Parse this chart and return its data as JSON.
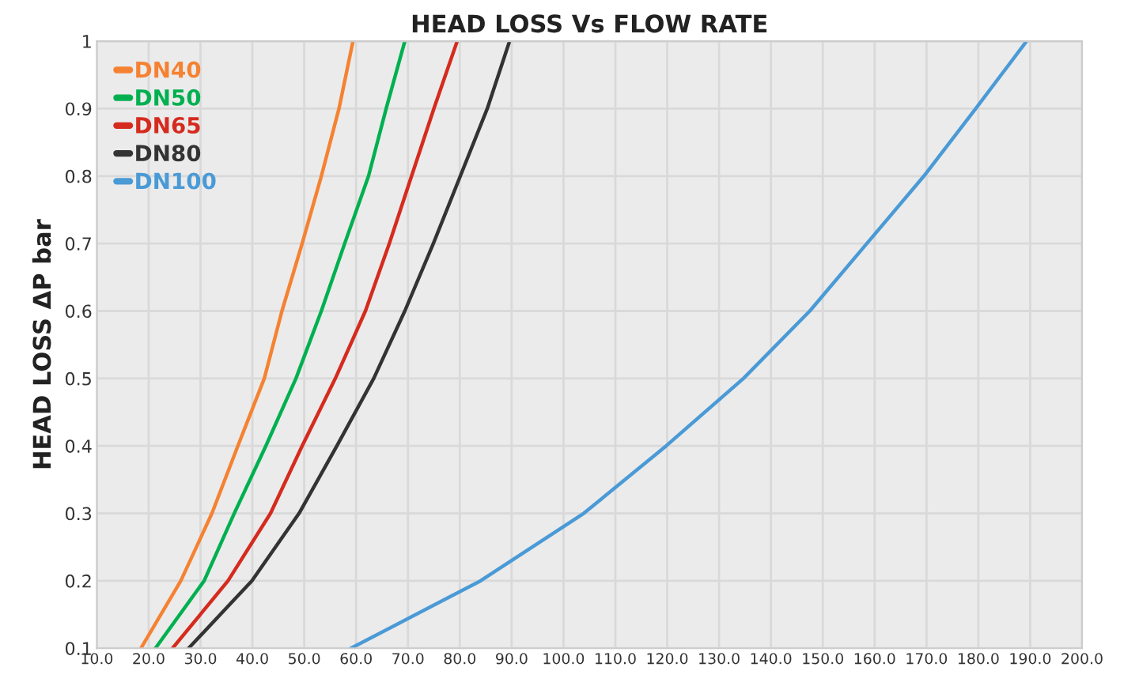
{
  "chart_data": {
    "type": "line",
    "title": "HEAD LOSS Vs FLOW RATE",
    "ylabel": "HEAD LOSS ΔP bar",
    "xlim": [
      10,
      200
    ],
    "xticks": [
      {
        "value": 10,
        "label": "10.0"
      },
      {
        "value": 20,
        "label": "20.0"
      },
      {
        "value": 30,
        "label": "30.0"
      },
      {
        "value": 40,
        "label": "40.0"
      },
      {
        "value": 50,
        "label": "50.0"
      },
      {
        "value": 60,
        "label": "60.0"
      },
      {
        "value": 70,
        "label": "70.0"
      },
      {
        "value": 80,
        "label": "80.0"
      },
      {
        "value": 90,
        "label": "90.0"
      },
      {
        "value": 100,
        "label": "100.0"
      },
      {
        "value": 110,
        "label": "110.0"
      },
      {
        "value": 120,
        "label": "120.0"
      },
      {
        "value": 130,
        "label": "130.0"
      },
      {
        "value": 140,
        "label": "140.0"
      },
      {
        "value": 150,
        "label": "150.0"
      },
      {
        "value": 160,
        "label": "160.0"
      },
      {
        "value": 170,
        "label": "170.0"
      },
      {
        "value": 180,
        "label": "180.0"
      },
      {
        "value": 190,
        "label": "190.0"
      },
      {
        "value": 200,
        "label": "200.0"
      }
    ],
    "ylim": [
      0.1,
      1
    ],
    "yticks": [
      0.1,
      0.2,
      0.3,
      0.4,
      0.5,
      0.6,
      0.7,
      0.8,
      0.9,
      1
    ],
    "grid": true,
    "legend": "top left",
    "marker": "none",
    "line_style": "solid",
    "series": [
      {
        "name": "DN40",
        "color": "#f58232",
        "x": [
          18.5,
          26.2,
          32.2,
          37.2,
          42.3,
          45.7,
          49.6,
          53.3,
          56.7,
          59.4
        ],
        "values": [
          0.1,
          0.2,
          0.3,
          0.4,
          0.5,
          0.6,
          0.7,
          0.8,
          0.9,
          1
        ]
      },
      {
        "name": "DN50",
        "color": "#00b050",
        "x": [
          21.3,
          30.7,
          36.5,
          42.6,
          48.4,
          53.3,
          57.8,
          62.4,
          65.8,
          69.4
        ],
        "values": [
          0.1,
          0.2,
          0.3,
          0.4,
          0.5,
          0.6,
          0.7,
          0.8,
          0.9,
          1
        ]
      },
      {
        "name": "DN65",
        "color": "#d52b1e",
        "x": [
          24.6,
          35.3,
          43.5,
          49.6,
          56.0,
          61.8,
          66.4,
          70.7,
          75.0,
          79.5
        ],
        "values": [
          0.1,
          0.2,
          0.3,
          0.4,
          0.5,
          0.6,
          0.7,
          0.8,
          0.9,
          1
        ]
      },
      {
        "name": "DN80",
        "color": "#333333",
        "x": [
          27.7,
          39.9,
          49.0,
          56.3,
          63.4,
          69.4,
          74.9,
          80.1,
          85.3,
          89.6
        ],
        "values": [
          0.1,
          0.2,
          0.3,
          0.4,
          0.5,
          0.6,
          0.7,
          0.8,
          0.9,
          1
        ]
      },
      {
        "name": "DN100",
        "color": "#4a9ad6",
        "x": [
          59.0,
          84.0,
          103.9,
          119.8,
          134.7,
          147.5,
          158.5,
          169.5,
          179.5,
          189.3
        ],
        "values": [
          0.1,
          0.2,
          0.3,
          0.4,
          0.5,
          0.6,
          0.7,
          0.8,
          0.9,
          1
        ]
      }
    ]
  }
}
